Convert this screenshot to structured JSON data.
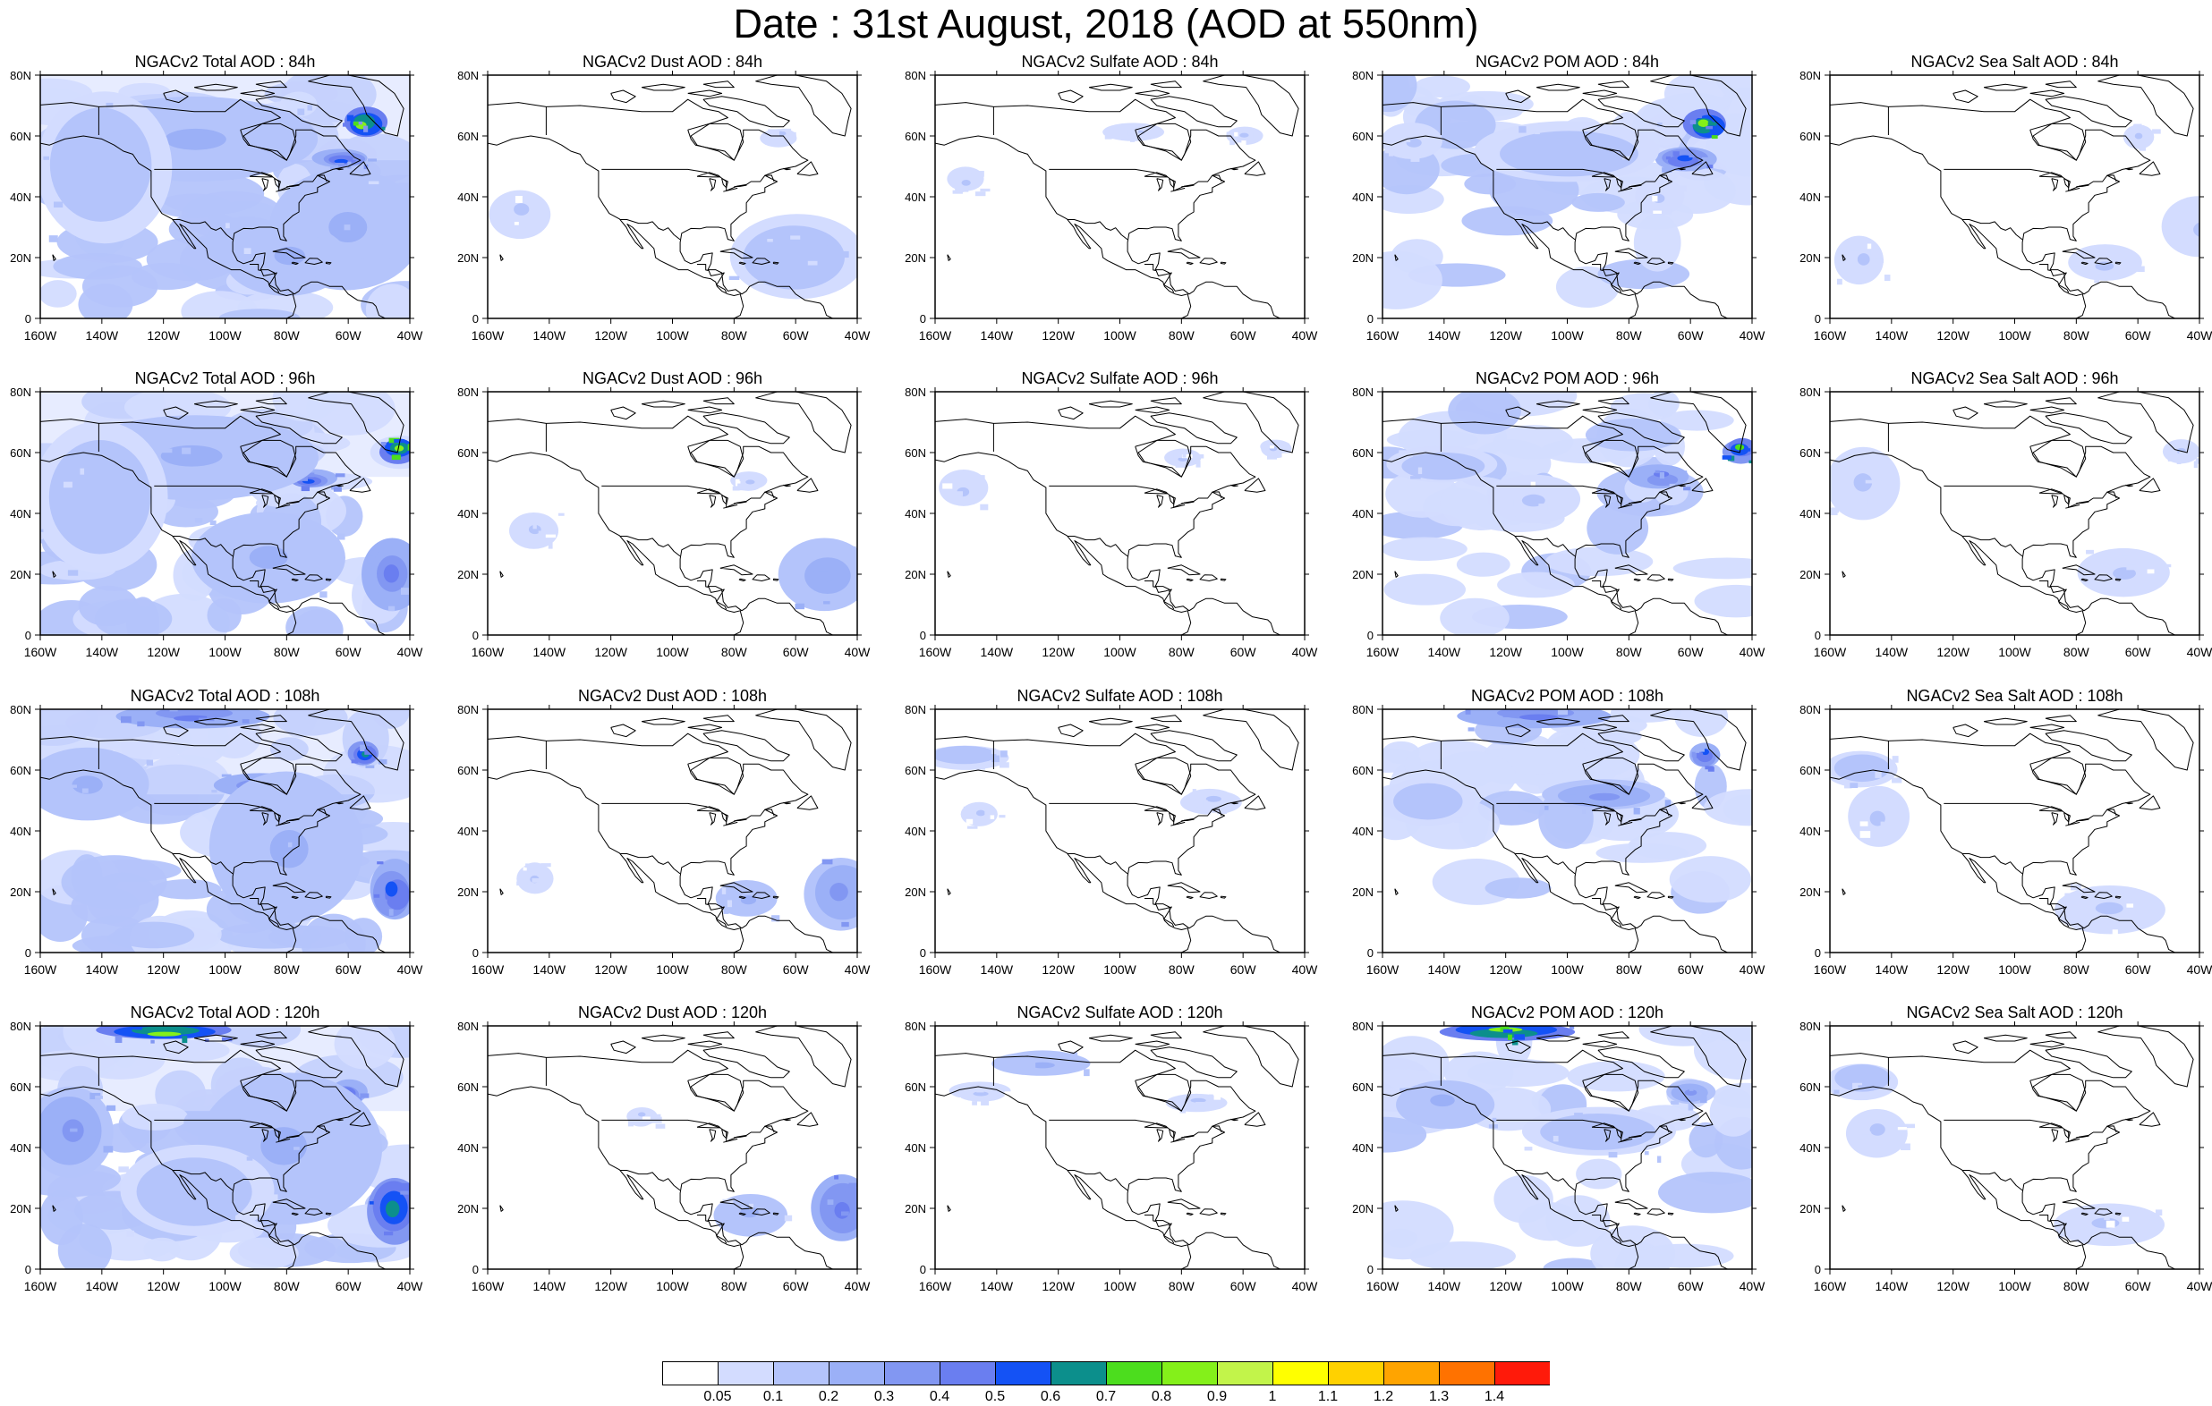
{
  "title": "Date : 31st August, 2018 (AOD at 550nm)",
  "lat_ticks": [
    "80N",
    "60N",
    "40N",
    "20N",
    "0"
  ],
  "lon_ticks": [
    "160W",
    "140W",
    "120W",
    "100W",
    "80W",
    "60W",
    "40W"
  ],
  "rows": [
    [
      "NGACv2 Total AOD : 84h",
      "NGACv2 Dust AOD : 84h",
      "NGACv2 Sulfate AOD : 84h",
      "NGACv2 POM AOD : 84h",
      "NGACv2 Sea Salt AOD : 84h"
    ],
    [
      "NGACv2 Total AOD : 96h",
      "NGACv2 Dust AOD : 96h",
      "NGACv2 Sulfate AOD : 96h",
      "NGACv2 POM AOD : 96h",
      "NGACv2 Sea Salt AOD : 96h"
    ],
    [
      "NGACv2 Total AOD : 108h",
      "NGACv2 Dust AOD : 108h",
      "NGACv2 Sulfate AOD : 108h",
      "NGACv2 POM AOD : 108h",
      "NGACv2 Sea Salt AOD : 108h"
    ],
    [
      "NGACv2 Total AOD : 120h",
      "NGACv2 Dust AOD : 120h",
      "NGACv2 Sulfate AOD : 120h",
      "NGACv2 POM AOD : 120h",
      "NGACv2 Sea Salt  AOD : 120h"
    ]
  ],
  "colorbar": {
    "labels": [
      "0.05",
      "0.1",
      "0.2",
      "0.3",
      "0.4",
      "0.5",
      "0.6",
      "0.7",
      "0.8",
      "0.9",
      "1",
      "1.1",
      "1.2",
      "1.3",
      "1.4"
    ],
    "colors": [
      "#ffffff",
      "#d3dcff",
      "#b4c4fb",
      "#9bb0f7",
      "#8297f2",
      "#6a7ef0",
      "#1452f5",
      "#0c8f8c",
      "#4cdd1e",
      "#84f01a",
      "#c2f44a",
      "#ffff00",
      "#ffd100",
      "#ffa400",
      "#ff7200",
      "#ff1a0a"
    ]
  },
  "chart_data": {
    "type": "heatmap",
    "title": "Date : 31st August, 2018 (AOD at 550nm)",
    "variable": "AOD at 550nm",
    "date": "31st August, 2018",
    "forecast_hours": [
      "84h",
      "96h",
      "108h",
      "120h"
    ],
    "species": [
      "Total",
      "Dust",
      "Sulfate",
      "POM",
      "Sea Salt"
    ],
    "lon_range": [
      -160,
      -40
    ],
    "lat_range": [
      0,
      80
    ],
    "levels": [
      0.05,
      0.1,
      0.2,
      0.3,
      0.4,
      0.5,
      0.6,
      0.7,
      0.8,
      0.9,
      1,
      1.1,
      1.2,
      1.3,
      1.4
    ],
    "plumes": {
      "Total": [
        [
          [
            -55,
            64,
            7,
            5,
            0.8
          ],
          [
            -62,
            52,
            9,
            3,
            0.5
          ],
          [
            -110,
            58,
            40,
            14,
            0.2
          ],
          [
            -60,
            30,
            25,
            20,
            0.2
          ],
          [
            -140,
            50,
            22,
            25,
            0.15
          ],
          [
            -80,
            20,
            20,
            12,
            0.2
          ]
        ],
        [
          [
            -44,
            61,
            6,
            4,
            0.8
          ],
          [
            -72,
            51,
            8,
            3,
            0.5
          ],
          [
            -110,
            58,
            40,
            14,
            0.2
          ],
          [
            -45,
            20,
            10,
            12,
            0.4
          ],
          [
            -140,
            45,
            22,
            25,
            0.15
          ],
          [
            -85,
            25,
            25,
            15,
            0.2
          ]
        ],
        [
          [
            -55,
            65,
            5,
            4,
            0.6
          ],
          [
            -88,
            55,
            15,
            4,
            0.4
          ],
          [
            -110,
            78,
            25,
            4,
            0.4
          ],
          [
            -45,
            20,
            8,
            10,
            0.5
          ],
          [
            -145,
            55,
            20,
            12,
            0.2
          ],
          [
            -80,
            35,
            25,
            25,
            0.2
          ]
        ],
        [
          [
            -120,
            78,
            22,
            3,
            0.8
          ],
          [
            -60,
            58,
            6,
            4,
            0.5
          ],
          [
            -45,
            20,
            9,
            11,
            0.6
          ],
          [
            -150,
            45,
            14,
            15,
            0.3
          ],
          [
            -80,
            40,
            30,
            25,
            0.2
          ],
          [
            -110,
            25,
            25,
            15,
            0.15
          ]
        ]
      ],
      "Dust": [
        [
          [
            -60,
            20,
            22,
            14,
            0.15
          ],
          [
            -150,
            35,
            10,
            8,
            0.1
          ],
          [
            -65,
            60,
            6,
            3,
            0.1
          ]
        ],
        [
          [
            -50,
            20,
            15,
            12,
            0.25
          ],
          [
            -145,
            35,
            8,
            6,
            0.1
          ],
          [
            -75,
            50,
            6,
            3,
            0.1
          ]
        ],
        [
          [
            -45,
            20,
            12,
            12,
            0.35
          ],
          [
            -75,
            18,
            10,
            6,
            0.2
          ],
          [
            -145,
            25,
            6,
            5,
            0.1
          ]
        ],
        [
          [
            -45,
            20,
            10,
            11,
            0.45
          ],
          [
            -75,
            18,
            12,
            7,
            0.2
          ],
          [
            -110,
            50,
            5,
            3,
            0.1
          ]
        ]
      ],
      "Sulfate": [
        [
          [
            -95,
            62,
            10,
            3,
            0.1
          ],
          [
            -60,
            60,
            6,
            3,
            0.1
          ],
          [
            -150,
            45,
            6,
            4,
            0.1
          ]
        ],
        [
          [
            -150,
            48,
            8,
            6,
            0.1
          ],
          [
            -80,
            58,
            6,
            3,
            0.1
          ],
          [
            -50,
            62,
            5,
            3,
            0.1
          ]
        ],
        [
          [
            -150,
            65,
            14,
            4,
            0.15
          ],
          [
            -70,
            50,
            10,
            4,
            0.1
          ],
          [
            -145,
            45,
            6,
            4,
            0.1
          ]
        ],
        [
          [
            -125,
            68,
            16,
            4,
            0.2
          ],
          [
            -145,
            58,
            10,
            3,
            0.1
          ],
          [
            -75,
            55,
            10,
            3,
            0.1
          ]
        ]
      ],
      "POM": [
        [
          [
            -55,
            64,
            7,
            5,
            0.8
          ],
          [
            -62,
            52,
            10,
            4,
            0.5
          ],
          [
            -100,
            55,
            30,
            10,
            0.15
          ],
          [
            -150,
            58,
            10,
            6,
            0.1
          ],
          [
            -70,
            40,
            8,
            6,
            0.1
          ]
        ],
        [
          [
            -44,
            61,
            6,
            4,
            0.7
          ],
          [
            -70,
            52,
            10,
            4,
            0.4
          ],
          [
            -140,
            56,
            18,
            6,
            0.15
          ],
          [
            -110,
            45,
            15,
            8,
            0.1
          ]
        ],
        [
          [
            -55,
            65,
            5,
            4,
            0.5
          ],
          [
            -88,
            52,
            20,
            5,
            0.3
          ],
          [
            -110,
            78,
            25,
            4,
            0.4
          ],
          [
            -145,
            50,
            15,
            8,
            0.15
          ]
        ],
        [
          [
            -120,
            78,
            22,
            3,
            0.8
          ],
          [
            -60,
            58,
            8,
            4,
            0.3
          ],
          [
            -140,
            55,
            16,
            8,
            0.2
          ],
          [
            -90,
            45,
            25,
            8,
            0.15
          ]
        ]
      ],
      "Sea Salt": [
        [
          [
            -40,
            30,
            12,
            10,
            0.1
          ],
          [
            -70,
            18,
            12,
            6,
            0.1
          ],
          [
            -150,
            20,
            8,
            8,
            0.1
          ],
          [
            -60,
            60,
            5,
            4,
            0.1
          ]
        ],
        [
          [
            -150,
            50,
            12,
            12,
            0.1
          ],
          [
            -65,
            20,
            15,
            8,
            0.1
          ],
          [
            -45,
            60,
            6,
            4,
            0.1
          ]
        ],
        [
          [
            -150,
            60,
            12,
            6,
            0.15
          ],
          [
            -145,
            45,
            10,
            10,
            0.1
          ],
          [
            -70,
            15,
            18,
            8,
            0.1
          ]
        ],
        [
          [
            -150,
            62,
            12,
            6,
            0.15
          ],
          [
            -145,
            45,
            10,
            8,
            0.1
          ],
          [
            -70,
            15,
            18,
            7,
            0.1
          ]
        ]
      ]
    }
  }
}
